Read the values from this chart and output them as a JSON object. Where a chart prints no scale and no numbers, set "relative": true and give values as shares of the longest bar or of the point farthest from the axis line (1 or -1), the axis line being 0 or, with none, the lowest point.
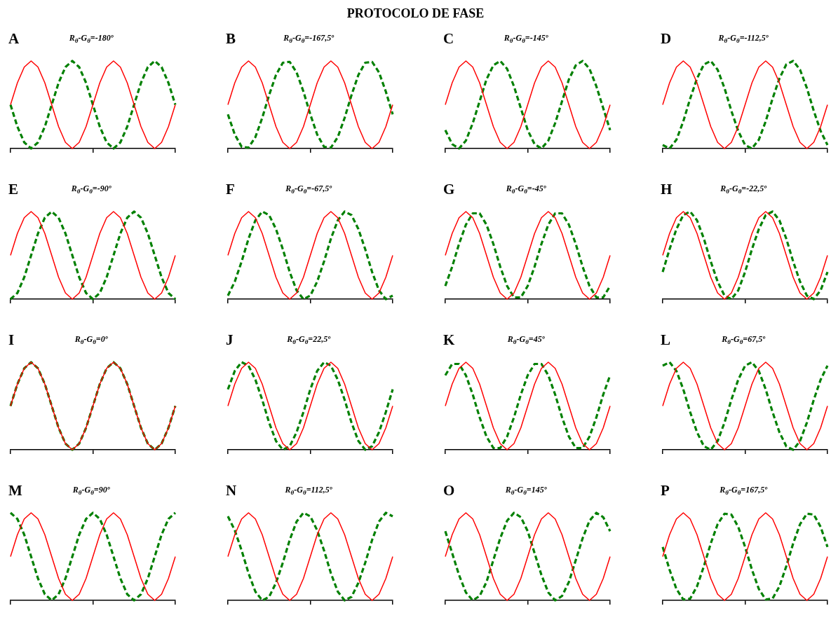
{
  "chart_data": [
    {
      "type": "other",
      "title": "PROTOCOLO DE FASE"
    },
    {
      "type": "line",
      "title": "A",
      "subtitle": "R$_{θ}$-G$_{θ}$=-180º",
      "relative": true,
      "tick_labels": false,
      "categories": [
        null,
        null,
        null,
        null,
        null,
        null,
        null,
        null,
        null,
        null,
        null,
        null,
        null,
        null,
        null,
        null,
        null,
        null,
        null,
        null,
        null,
        null,
        null,
        null,
        null
      ],
      "series": [
        {
          "color": "#ff0000",
          "values": [
            0.5,
            0.75,
            0.93,
            1,
            0.93,
            0.75,
            0.5,
            0.25,
            0.07,
            0,
            0.07,
            0.25,
            0.5,
            0.75,
            0.93,
            1,
            0.93,
            0.75,
            0.5,
            0.25,
            0.07,
            0,
            0.07,
            0.25,
            0.5
          ]
        },
        {
          "color": "#008000",
          "line_style": "dashed",
          "values": [
            0.5,
            0.25,
            0.07,
            0,
            0.07,
            0.25,
            0.5,
            0.75,
            0.93,
            1,
            0.93,
            0.75,
            0.5,
            0.25,
            0.07,
            0,
            0.07,
            0.25,
            0.5,
            0.75,
            0.93,
            1,
            0.93,
            0.75,
            0.5
          ]
        }
      ]
    },
    {
      "type": "line",
      "title": "B",
      "subtitle": "R$_{θ}$-G$_{θ}$=-167,5º",
      "relative": true,
      "tick_labels": false,
      "categories": [
        null,
        null,
        null,
        null,
        null,
        null,
        null,
        null,
        null,
        null,
        null,
        null,
        null,
        null,
        null,
        null,
        null,
        null,
        null,
        null,
        null,
        null,
        null,
        null,
        null
      ],
      "series": [
        {
          "color": "#ff0000",
          "values": [
            0.5,
            0.75,
            0.93,
            1,
            0.93,
            0.75,
            0.5,
            0.25,
            0.07,
            0,
            0.07,
            0.25,
            0.5,
            0.75,
            0.93,
            1,
            0.93,
            0.75,
            0.5,
            0.25,
            0.07,
            0,
            0.07,
            0.25,
            0.5
          ]
        },
        {
          "color": "#008000",
          "line_style": "dashed",
          "values": [
            0.39,
            0.16,
            0.02,
            0.01,
            0.13,
            0.35,
            0.61,
            0.84,
            0.98,
            0.99,
            0.87,
            0.65,
            0.39,
            0.16,
            0.02,
            0.01,
            0.13,
            0.35,
            0.61,
            0.84,
            0.98,
            0.99,
            0.87,
            0.65,
            0.39
          ]
        }
      ]
    },
    {
      "type": "line",
      "title": "C",
      "subtitle": "R$_{θ}$-G$_{θ}$=-145º",
      "relative": true,
      "tick_labels": false,
      "categories": [
        null,
        null,
        null,
        null,
        null,
        null,
        null,
        null,
        null,
        null,
        null,
        null,
        null,
        null,
        null,
        null,
        null,
        null,
        null,
        null,
        null,
        null,
        null,
        null,
        null
      ],
      "series": [
        {
          "color": "#ff0000",
          "values": [
            0.5,
            0.75,
            0.93,
            1,
            0.93,
            0.75,
            0.5,
            0.25,
            0.07,
            0,
            0.07,
            0.25,
            0.5,
            0.75,
            0.93,
            1,
            0.93,
            0.75,
            0.5,
            0.25,
            0.07,
            0,
            0.07,
            0.25,
            0.5
          ]
        },
        {
          "color": "#008000",
          "line_style": "dashed",
          "values": [
            0.21,
            0.05,
            0,
            0.09,
            0.29,
            0.54,
            0.79,
            0.95,
            1,
            0.91,
            0.71,
            0.46,
            0.21,
            0.05,
            0,
            0.09,
            0.29,
            0.54,
            0.79,
            0.95,
            1,
            0.91,
            0.71,
            0.46,
            0.21
          ]
        }
      ]
    },
    {
      "type": "line",
      "title": "D",
      "subtitle": "R$_{θ}$-G$_{θ}$=-112,5º",
      "relative": true,
      "tick_labels": false,
      "categories": [
        null,
        null,
        null,
        null,
        null,
        null,
        null,
        null,
        null,
        null,
        null,
        null,
        null,
        null,
        null,
        null,
        null,
        null,
        null,
        null,
        null,
        null,
        null,
        null,
        null
      ],
      "series": [
        {
          "color": "#ff0000",
          "values": [
            0.5,
            0.75,
            0.93,
            1,
            0.93,
            0.75,
            0.5,
            0.25,
            0.07,
            0,
            0.07,
            0.25,
            0.5,
            0.75,
            0.93,
            1,
            0.93,
            0.75,
            0.5,
            0.25,
            0.07,
            0,
            0.07,
            0.25,
            0.5
          ]
        },
        {
          "color": "#008000",
          "line_style": "dashed",
          "values": [
            0.04,
            0,
            0.1,
            0.31,
            0.57,
            0.8,
            0.96,
            1,
            0.9,
            0.69,
            0.43,
            0.2,
            0.04,
            0,
            0.1,
            0.31,
            0.57,
            0.8,
            0.96,
            1,
            0.9,
            0.69,
            0.43,
            0.2,
            0.04
          ]
        }
      ]
    },
    {
      "type": "line",
      "title": "E",
      "subtitle": "R$_{θ}$-G$_{θ}$=-90º",
      "relative": true,
      "tick_labels": false,
      "categories": [
        null,
        null,
        null,
        null,
        null,
        null,
        null,
        null,
        null,
        null,
        null,
        null,
        null,
        null,
        null,
        null,
        null,
        null,
        null,
        null,
        null,
        null,
        null,
        null,
        null
      ],
      "series": [
        {
          "color": "#ff0000",
          "values": [
            0.5,
            0.75,
            0.93,
            1,
            0.93,
            0.75,
            0.5,
            0.25,
            0.07,
            0,
            0.07,
            0.25,
            0.5,
            0.75,
            0.93,
            1,
            0.93,
            0.75,
            0.5,
            0.25,
            0.07,
            0,
            0.07,
            0.25,
            0.5
          ]
        },
        {
          "color": "#008000",
          "line_style": "dashed",
          "values": [
            0,
            0.07,
            0.25,
            0.5,
            0.75,
            0.93,
            1,
            0.93,
            0.75,
            0.5,
            0.25,
            0.07,
            0,
            0.07,
            0.25,
            0.5,
            0.75,
            0.93,
            1,
            0.93,
            0.75,
            0.5,
            0.25,
            0.07,
            0
          ]
        }
      ]
    },
    {
      "type": "line",
      "title": "F",
      "subtitle": "R$_{θ}$-G$_{θ}$=-67,5º",
      "relative": true,
      "tick_labels": false,
      "categories": [
        null,
        null,
        null,
        null,
        null,
        null,
        null,
        null,
        null,
        null,
        null,
        null,
        null,
        null,
        null,
        null,
        null,
        null,
        null,
        null,
        null,
        null,
        null,
        null,
        null
      ],
      "series": [
        {
          "color": "#ff0000",
          "values": [
            0.5,
            0.75,
            0.93,
            1,
            0.93,
            0.75,
            0.5,
            0.25,
            0.07,
            0,
            0.07,
            0.25,
            0.5,
            0.75,
            0.93,
            1,
            0.93,
            0.75,
            0.5,
            0.25,
            0.07,
            0,
            0.07,
            0.25,
            0.5
          ]
        },
        {
          "color": "#008000",
          "line_style": "dashed",
          "values": [
            0.04,
            0.2,
            0.43,
            0.69,
            0.9,
            1,
            0.96,
            0.8,
            0.57,
            0.31,
            0.1,
            0,
            0.04,
            0.2,
            0.43,
            0.69,
            0.9,
            1,
            0.96,
            0.8,
            0.57,
            0.31,
            0.1,
            0,
            0.04
          ]
        }
      ]
    },
    {
      "type": "line",
      "title": "G",
      "subtitle": "R$_{θ}$-G$_{θ}$=-45º",
      "relative": true,
      "tick_labels": false,
      "categories": [
        null,
        null,
        null,
        null,
        null,
        null,
        null,
        null,
        null,
        null,
        null,
        null,
        null,
        null,
        null,
        null,
        null,
        null,
        null,
        null,
        null,
        null,
        null,
        null,
        null
      ],
      "series": [
        {
          "color": "#ff0000",
          "values": [
            0.5,
            0.75,
            0.93,
            1,
            0.93,
            0.75,
            0.5,
            0.25,
            0.07,
            0,
            0.07,
            0.25,
            0.5,
            0.75,
            0.93,
            1,
            0.93,
            0.75,
            0.5,
            0.25,
            0.07,
            0,
            0.07,
            0.25,
            0.5
          ]
        },
        {
          "color": "#008000",
          "line_style": "dashed",
          "values": [
            0.15,
            0.37,
            0.63,
            0.85,
            0.98,
            0.98,
            0.85,
            0.63,
            0.37,
            0.15,
            0.02,
            0.02,
            0.15,
            0.37,
            0.63,
            0.85,
            0.98,
            0.98,
            0.85,
            0.63,
            0.37,
            0.15,
            0.02,
            0.02,
            0.15
          ]
        }
      ]
    },
    {
      "type": "line",
      "title": "H",
      "subtitle": "R$_{θ}$-G$_{θ}$=-22,5º",
      "relative": true,
      "tick_labels": false,
      "categories": [
        null,
        null,
        null,
        null,
        null,
        null,
        null,
        null,
        null,
        null,
        null,
        null,
        null,
        null,
        null,
        null,
        null,
        null,
        null,
        null,
        null,
        null,
        null,
        null,
        null
      ],
      "series": [
        {
          "color": "#ff0000",
          "values": [
            0.5,
            0.75,
            0.93,
            1,
            0.93,
            0.75,
            0.5,
            0.25,
            0.07,
            0,
            0.07,
            0.25,
            0.5,
            0.75,
            0.93,
            1,
            0.93,
            0.75,
            0.5,
            0.25,
            0.07,
            0,
            0.07,
            0.25,
            0.5
          ]
        },
        {
          "color": "#008000",
          "line_style": "dashed",
          "values": [
            0.31,
            0.57,
            0.8,
            0.96,
            1,
            0.9,
            0.69,
            0.43,
            0.2,
            0.04,
            0,
            0.1,
            0.31,
            0.57,
            0.8,
            0.96,
            1,
            0.9,
            0.69,
            0.43,
            0.2,
            0.04,
            0,
            0.1,
            0.31
          ]
        }
      ]
    },
    {
      "type": "line",
      "title": "I",
      "subtitle": "R$_{θ}$-G$_{θ}$=0º",
      "relative": true,
      "tick_labels": false,
      "categories": [
        null,
        null,
        null,
        null,
        null,
        null,
        null,
        null,
        null,
        null,
        null,
        null,
        null,
        null,
        null,
        null,
        null,
        null,
        null,
        null,
        null,
        null,
        null,
        null,
        null
      ],
      "series": [
        {
          "color": "#ff0000",
          "values": [
            0.5,
            0.75,
            0.93,
            1,
            0.93,
            0.75,
            0.5,
            0.25,
            0.07,
            0,
            0.07,
            0.25,
            0.5,
            0.75,
            0.93,
            1,
            0.93,
            0.75,
            0.5,
            0.25,
            0.07,
            0,
            0.07,
            0.25,
            0.5
          ]
        },
        {
          "color": "#008000",
          "line_style": "dashed",
          "values": [
            0.5,
            0.75,
            0.93,
            1,
            0.93,
            0.75,
            0.5,
            0.25,
            0.07,
            0,
            0.07,
            0.25,
            0.5,
            0.75,
            0.93,
            1,
            0.93,
            0.75,
            0.5,
            0.25,
            0.07,
            0,
            0.07,
            0.25,
            0.5
          ]
        }
      ]
    },
    {
      "type": "line",
      "title": "J",
      "subtitle": "R$_{θ}$-G$_{θ}$=22,5º",
      "relative": true,
      "tick_labels": false,
      "categories": [
        null,
        null,
        null,
        null,
        null,
        null,
        null,
        null,
        null,
        null,
        null,
        null,
        null,
        null,
        null,
        null,
        null,
        null,
        null,
        null,
        null,
        null,
        null,
        null,
        null
      ],
      "series": [
        {
          "color": "#ff0000",
          "values": [
            0.5,
            0.75,
            0.93,
            1,
            0.93,
            0.75,
            0.5,
            0.25,
            0.07,
            0,
            0.07,
            0.25,
            0.5,
            0.75,
            0.93,
            1,
            0.93,
            0.75,
            0.5,
            0.25,
            0.07,
            0,
            0.07,
            0.25,
            0.5
          ]
        },
        {
          "color": "#008000",
          "line_style": "dashed",
          "values": [
            0.69,
            0.9,
            1,
            0.96,
            0.8,
            0.57,
            0.31,
            0.1,
            0,
            0.04,
            0.2,
            0.43,
            0.69,
            0.9,
            1,
            0.96,
            0.8,
            0.57,
            0.31,
            0.1,
            0,
            0.04,
            0.2,
            0.43,
            0.69
          ]
        }
      ]
    },
    {
      "type": "line",
      "title": "K",
      "subtitle": "R$_{θ}$-G$_{θ}$=45º",
      "relative": true,
      "tick_labels": false,
      "categories": [
        null,
        null,
        null,
        null,
        null,
        null,
        null,
        null,
        null,
        null,
        null,
        null,
        null,
        null,
        null,
        null,
        null,
        null,
        null,
        null,
        null,
        null,
        null,
        null,
        null
      ],
      "series": [
        {
          "color": "#ff0000",
          "values": [
            0.5,
            0.75,
            0.93,
            1,
            0.93,
            0.75,
            0.5,
            0.25,
            0.07,
            0,
            0.07,
            0.25,
            0.5,
            0.75,
            0.93,
            1,
            0.93,
            0.75,
            0.5,
            0.25,
            0.07,
            0,
            0.07,
            0.25,
            0.5
          ]
        },
        {
          "color": "#008000",
          "line_style": "dashed",
          "values": [
            0.85,
            0.98,
            0.98,
            0.85,
            0.63,
            0.37,
            0.15,
            0.02,
            0.02,
            0.15,
            0.37,
            0.63,
            0.85,
            0.98,
            0.98,
            0.85,
            0.63,
            0.37,
            0.15,
            0.02,
            0.02,
            0.15,
            0.37,
            0.63,
            0.85
          ]
        }
      ]
    },
    {
      "type": "line",
      "title": "L",
      "subtitle": "R$_{θ}$-G$_{θ}$=67,5º",
      "relative": true,
      "tick_labels": false,
      "categories": [
        null,
        null,
        null,
        null,
        null,
        null,
        null,
        null,
        null,
        null,
        null,
        null,
        null,
        null,
        null,
        null,
        null,
        null,
        null,
        null,
        null,
        null,
        null,
        null,
        null
      ],
      "series": [
        {
          "color": "#ff0000",
          "values": [
            0.5,
            0.75,
            0.93,
            1,
            0.93,
            0.75,
            0.5,
            0.25,
            0.07,
            0,
            0.07,
            0.25,
            0.5,
            0.75,
            0.93,
            1,
            0.93,
            0.75,
            0.5,
            0.25,
            0.07,
            0,
            0.07,
            0.25,
            0.5
          ]
        },
        {
          "color": "#008000",
          "line_style": "dashed",
          "values": [
            0.96,
            1,
            0.9,
            0.69,
            0.43,
            0.2,
            0.04,
            0,
            0.1,
            0.31,
            0.57,
            0.8,
            0.96,
            1,
            0.9,
            0.69,
            0.43,
            0.2,
            0.04,
            0,
            0.1,
            0.31,
            0.57,
            0.8,
            0.96
          ]
        }
      ]
    },
    {
      "type": "line",
      "title": "M",
      "subtitle": "R$_{θ}$-G$_{θ}$=90º",
      "relative": true,
      "tick_labels": false,
      "categories": [
        null,
        null,
        null,
        null,
        null,
        null,
        null,
        null,
        null,
        null,
        null,
        null,
        null,
        null,
        null,
        null,
        null,
        null,
        null,
        null,
        null,
        null,
        null,
        null,
        null
      ],
      "series": [
        {
          "color": "#ff0000",
          "values": [
            0.5,
            0.75,
            0.93,
            1,
            0.93,
            0.75,
            0.5,
            0.25,
            0.07,
            0,
            0.07,
            0.25,
            0.5,
            0.75,
            0.93,
            1,
            0.93,
            0.75,
            0.5,
            0.25,
            0.07,
            0,
            0.07,
            0.25,
            0.5
          ]
        },
        {
          "color": "#008000",
          "line_style": "dashed",
          "values": [
            1,
            0.93,
            0.75,
            0.5,
            0.25,
            0.07,
            0,
            0.07,
            0.25,
            0.5,
            0.75,
            0.93,
            1,
            0.93,
            0.75,
            0.5,
            0.25,
            0.07,
            0,
            0.07,
            0.25,
            0.5,
            0.75,
            0.93,
            1
          ]
        }
      ]
    },
    {
      "type": "line",
      "title": "N",
      "subtitle": "R$_{θ}$-G$_{θ}$=112,5º",
      "relative": true,
      "tick_labels": false,
      "categories": [
        null,
        null,
        null,
        null,
        null,
        null,
        null,
        null,
        null,
        null,
        null,
        null,
        null,
        null,
        null,
        null,
        null,
        null,
        null,
        null,
        null,
        null,
        null,
        null,
        null
      ],
      "series": [
        {
          "color": "#ff0000",
          "values": [
            0.5,
            0.75,
            0.93,
            1,
            0.93,
            0.75,
            0.5,
            0.25,
            0.07,
            0,
            0.07,
            0.25,
            0.5,
            0.75,
            0.93,
            1,
            0.93,
            0.75,
            0.5,
            0.25,
            0.07,
            0,
            0.07,
            0.25,
            0.5
          ]
        },
        {
          "color": "#008000",
          "line_style": "dashed",
          "values": [
            0.96,
            0.8,
            0.57,
            0.31,
            0.1,
            0,
            0.04,
            0.2,
            0.43,
            0.69,
            0.9,
            1,
            0.96,
            0.8,
            0.57,
            0.31,
            0.1,
            0,
            0.04,
            0.2,
            0.43,
            0.69,
            0.9,
            1,
            0.96
          ]
        }
      ]
    },
    {
      "type": "line",
      "title": "O",
      "subtitle": "R$_{θ}$-G$_{θ}$=145º",
      "relative": true,
      "tick_labels": false,
      "categories": [
        null,
        null,
        null,
        null,
        null,
        null,
        null,
        null,
        null,
        null,
        null,
        null,
        null,
        null,
        null,
        null,
        null,
        null,
        null,
        null,
        null,
        null,
        null,
        null,
        null
      ],
      "series": [
        {
          "color": "#ff0000",
          "values": [
            0.5,
            0.75,
            0.93,
            1,
            0.93,
            0.75,
            0.5,
            0.25,
            0.07,
            0,
            0.07,
            0.25,
            0.5,
            0.75,
            0.93,
            1,
            0.93,
            0.75,
            0.5,
            0.25,
            0.07,
            0,
            0.07,
            0.25,
            0.5
          ]
        },
        {
          "color": "#008000",
          "line_style": "dashed",
          "values": [
            0.79,
            0.54,
            0.29,
            0.09,
            0,
            0.05,
            0.21,
            0.46,
            0.71,
            0.91,
            1,
            0.95,
            0.79,
            0.54,
            0.29,
            0.09,
            0,
            0.05,
            0.21,
            0.46,
            0.71,
            0.91,
            1,
            0.95,
            0.79
          ]
        }
      ]
    },
    {
      "type": "line",
      "title": "P",
      "subtitle": "R$_{θ}$-G$_{θ}$=167,5º",
      "relative": true,
      "tick_labels": false,
      "categories": [
        null,
        null,
        null,
        null,
        null,
        null,
        null,
        null,
        null,
        null,
        null,
        null,
        null,
        null,
        null,
        null,
        null,
        null,
        null,
        null,
        null,
        null,
        null,
        null,
        null
      ],
      "series": [
        {
          "color": "#ff0000",
          "values": [
            0.5,
            0.75,
            0.93,
            1,
            0.93,
            0.75,
            0.5,
            0.25,
            0.07,
            0,
            0.07,
            0.25,
            0.5,
            0.75,
            0.93,
            1,
            0.93,
            0.75,
            0.5,
            0.25,
            0.07,
            0,
            0.07,
            0.25,
            0.5
          ]
        },
        {
          "color": "#008000",
          "line_style": "dashed",
          "values": [
            0.61,
            0.35,
            0.13,
            0.01,
            0.02,
            0.16,
            0.39,
            0.65,
            0.87,
            0.99,
            0.98,
            0.84,
            0.61,
            0.35,
            0.13,
            0.01,
            0.02,
            0.16,
            0.39,
            0.65,
            0.87,
            0.99,
            0.98,
            0.84,
            0.61
          ]
        }
      ]
    }
  ]
}
